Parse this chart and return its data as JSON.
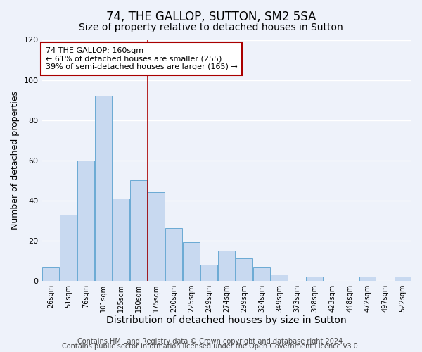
{
  "title": "74, THE GALLOP, SUTTON, SM2 5SA",
  "subtitle": "Size of property relative to detached houses in Sutton",
  "xlabel": "Distribution of detached houses by size in Sutton",
  "ylabel": "Number of detached properties",
  "bar_labels": [
    "26sqm",
    "51sqm",
    "76sqm",
    "101sqm",
    "125sqm",
    "150sqm",
    "175sqm",
    "200sqm",
    "225sqm",
    "249sqm",
    "274sqm",
    "299sqm",
    "324sqm",
    "349sqm",
    "373sqm",
    "398sqm",
    "423sqm",
    "448sqm",
    "472sqm",
    "497sqm",
    "522sqm"
  ],
  "bar_values": [
    7,
    33,
    60,
    92,
    41,
    50,
    44,
    26,
    19,
    8,
    15,
    11,
    7,
    3,
    0,
    2,
    0,
    0,
    2,
    0,
    2
  ],
  "bar_color": "#c8d9f0",
  "bar_edge_color": "#6aaad4",
  "vline_x": 5.5,
  "vline_color": "#aa0000",
  "annotation_box_text": "74 THE GALLOP: 160sqm\n← 61% of detached houses are smaller (255)\n39% of semi-detached houses are larger (165) →",
  "annotation_box_edge_color": "#aa0000",
  "ylim": [
    0,
    120
  ],
  "yticks": [
    0,
    20,
    40,
    60,
    80,
    100,
    120
  ],
  "footer1": "Contains HM Land Registry data © Crown copyright and database right 2024.",
  "footer2": "Contains public sector information licensed under the Open Government Licence v3.0.",
  "background_color": "#eef2fa",
  "title_fontsize": 12,
  "subtitle_fontsize": 10,
  "xlabel_fontsize": 10,
  "ylabel_fontsize": 9,
  "footer_fontsize": 7
}
